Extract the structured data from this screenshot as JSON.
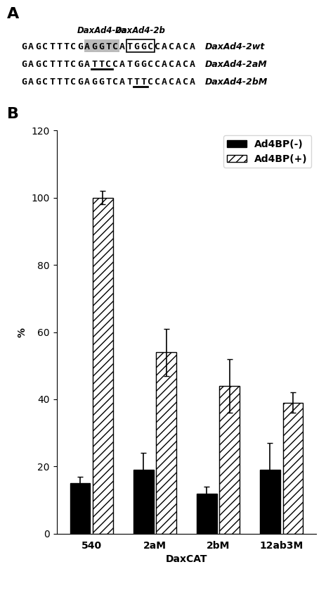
{
  "chart_data": {
    "type": "bar",
    "annotations": [
      "A",
      "DaxAd4-2a",
      "DaxAd4-2b",
      "GAGCTTTCGAGGTCATGGCCACACA",
      "DaxAd4-2wt",
      "GAGCTTTCGATTCCATGGCCACACA",
      "DaxAd4-2aM",
      "GAGCTTTCGAGGTCATTTCCACACA",
      "DaxAd4-2bM",
      "B"
    ],
    "x_label": "DaxCAT",
    "y_label": "%",
    "categories": [
      "540",
      "2aM",
      "2bM",
      "12ab3M"
    ],
    "series": [
      {
        "name": "Ad4BP(-)",
        "color": "#000000",
        "values": [
          15,
          19,
          12,
          19
        ],
        "errors": [
          2,
          5,
          2,
          8
        ]
      },
      {
        "name": "Ad4BP(+)",
        "color": "#ffffff",
        "values": [
          100,
          54,
          44,
          39
        ],
        "errors": [
          2,
          7,
          8,
          3
        ]
      }
    ],
    "ylim": [
      0,
      120
    ],
    "yticks": [
      0,
      20,
      40,
      60,
      80,
      100,
      120
    ],
    "grid": false,
    "legend": "upper right"
  }
}
